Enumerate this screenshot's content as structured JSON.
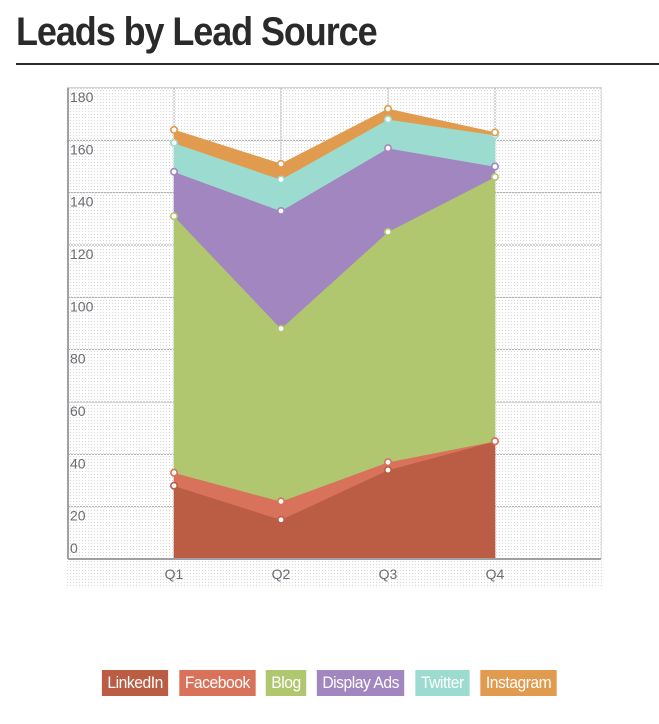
{
  "page": {
    "title": "Leads by Lead Source"
  },
  "chart_data": {
    "type": "area",
    "stacked": true,
    "title": "Leads by Lead Source",
    "xlabel": "",
    "ylabel": "",
    "categories": [
      "Q1",
      "Q2",
      "Q3",
      "Q4"
    ],
    "ylim": [
      0,
      180
    ],
    "yticks": [
      0,
      20,
      40,
      60,
      80,
      100,
      120,
      140,
      160,
      180
    ],
    "grid": true,
    "legend_position": "bottom",
    "series": [
      {
        "name": "LinkedIn",
        "color": "#bb5c45",
        "values": [
          28,
          15,
          34,
          45
        ]
      },
      {
        "name": "Facebook",
        "color": "#d9725b",
        "values": [
          5,
          7,
          3,
          0
        ]
      },
      {
        "name": "Blog",
        "color": "#b0c76f",
        "values": [
          98,
          66,
          88,
          101
        ]
      },
      {
        "name": "Display Ads",
        "color": "#a286c0",
        "values": [
          17,
          45,
          32,
          4
        ]
      },
      {
        "name": "Twitter",
        "color": "#9cdcd0",
        "values": [
          11,
          12,
          11,
          12
        ]
      },
      {
        "name": "Instagram",
        "color": "#e19b4e",
        "values": [
          5,
          6,
          4,
          1
        ]
      }
    ]
  },
  "legend": {
    "items": [
      {
        "label": "LinkedIn",
        "color": "#bb5c45"
      },
      {
        "label": "Facebook",
        "color": "#d9725b"
      },
      {
        "label": "Blog",
        "color": "#b0c76f"
      },
      {
        "label": "Display Ads",
        "color": "#a286c0"
      },
      {
        "label": "Twitter",
        "color": "#9cdcd0"
      },
      {
        "label": "Instagram",
        "color": "#e19b4e"
      }
    ]
  }
}
